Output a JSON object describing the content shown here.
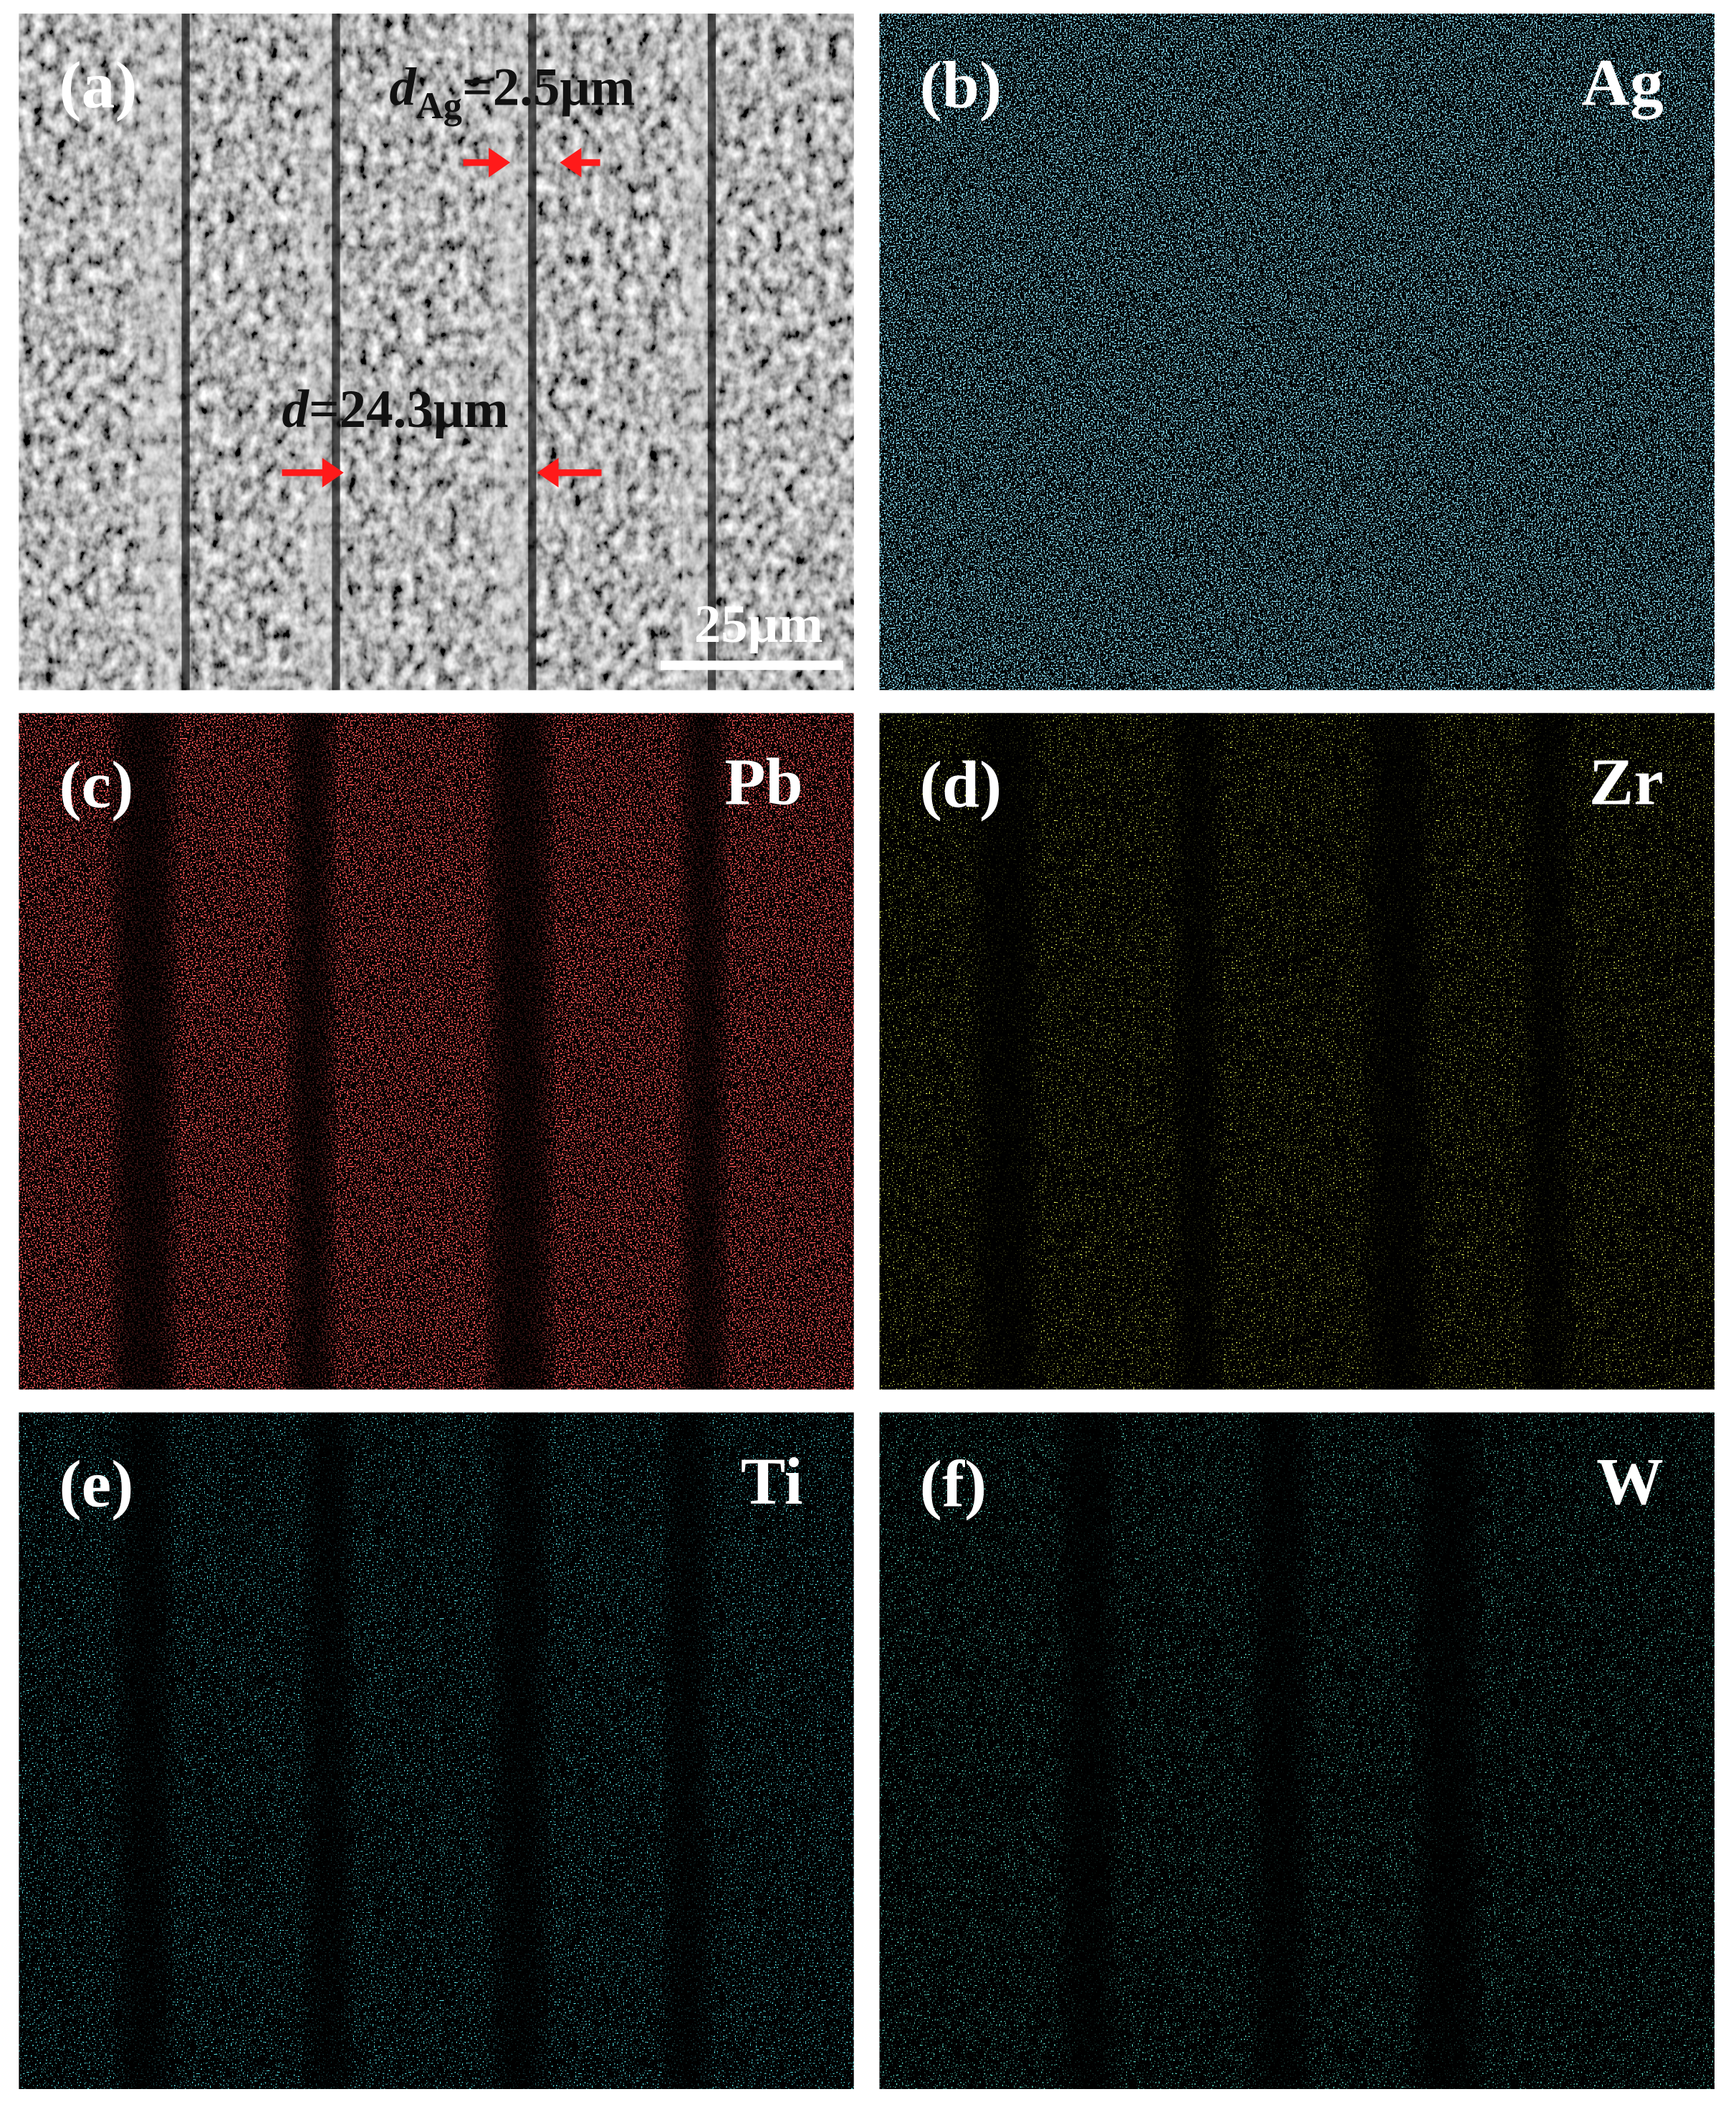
{
  "panels": [
    {
      "label": "(a)",
      "measure_1": {
        "symbol": "d",
        "subscript": "Ag",
        "value": "=2.5μm"
      },
      "measure_2": {
        "symbol": "d",
        "value": "=24.3μm"
      },
      "scale_bar": "25μm"
    },
    {
      "label": "(b)",
      "element": "Ag"
    },
    {
      "label": "(c)",
      "element": "Pb"
    },
    {
      "label": "(d)",
      "element": "Zr"
    },
    {
      "label": "(e)",
      "element": "Ti"
    },
    {
      "label": "(f)",
      "element": "W"
    }
  ]
}
